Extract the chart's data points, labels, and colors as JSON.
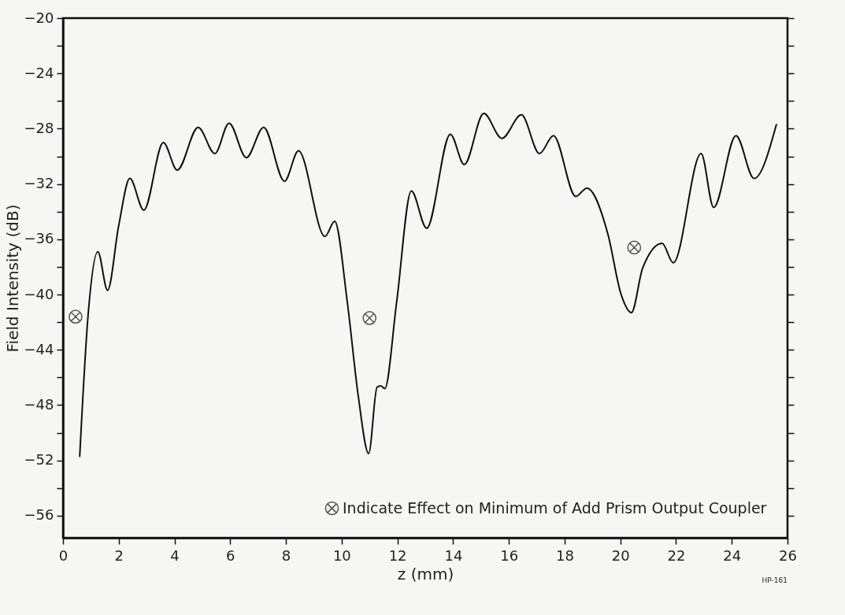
{
  "chart_data": {
    "type": "line",
    "xlabel": "z  (mm)",
    "ylabel": "Field Intensity  (dB)",
    "xlim": [
      0,
      26
    ],
    "ylim": [
      -57.6,
      -20
    ],
    "xticks": [
      0,
      2,
      4,
      6,
      8,
      10,
      12,
      14,
      16,
      18,
      20,
      22,
      24,
      26
    ],
    "yticks": [
      -20,
      {
        "value": -22,
        "label": null
      },
      -24,
      {
        "value": -26,
        "label": null
      },
      -28,
      {
        "value": -30,
        "label": null
      },
      -32,
      {
        "value": -34,
        "label": null
      },
      -36,
      {
        "value": -38,
        "label": null
      },
      -40,
      {
        "value": -42,
        "label": null
      },
      -44,
      {
        "value": -46,
        "label": null
      },
      -48,
      {
        "value": -50,
        "label": null
      },
      -52,
      {
        "value": -54,
        "label": null
      },
      -56
    ],
    "grid": false,
    "legend": "bottom right",
    "line_style": "solid",
    "series": [
      {
        "color": "#111111",
        "x": [
          0.6,
          0.9,
          1.25,
          1.6,
          2.0,
          2.4,
          2.9,
          3.6,
          4.1,
          4.85,
          5.45,
          5.96,
          6.58,
          7.2,
          7.95,
          8.45,
          9.4,
          9.75,
          10.2,
          10.6,
          10.97,
          11.27,
          11.4,
          11.55,
          11.97,
          12.5,
          13.05,
          13.9,
          14.4,
          15.1,
          15.75,
          16.45,
          17.1,
          17.6,
          18.4,
          18.8,
          19.55,
          20.03,
          20.4,
          20.8,
          21.5,
          21.9,
          22.9,
          23.35,
          24.15,
          24.8,
          25.6
        ],
        "values": [
          -51.7,
          -41.5,
          -36.9,
          -39.7,
          -35.0,
          -31.6,
          -33.9,
          -29.0,
          -31.0,
          -27.9,
          -29.8,
          -27.6,
          -30.1,
          -27.9,
          -31.8,
          -29.6,
          -35.8,
          -34.7,
          -40.5,
          -47.4,
          -51.5,
          -46.7,
          -46.6,
          -46.8,
          -40.6,
          -32.5,
          -35.2,
          -28.4,
          -30.6,
          -26.9,
          -28.7,
          -27.0,
          -29.8,
          -28.5,
          -32.9,
          -32.3,
          -35.6,
          -40.0,
          -41.3,
          -38.1,
          -36.3,
          -37.7,
          -29.8,
          -33.7,
          -28.5,
          -31.6,
          -27.7
        ]
      },
      {
        "type": "scatter",
        "marker": "cross",
        "name": "Indicate Effect on Minimum of Add Prism Output Coupler",
        "color": "#111111",
        "x": [
          0.45,
          11.0,
          20.5
        ],
        "values": [
          -41.6,
          -41.7,
          -36.6
        ]
      }
    ],
    "annotations": [
      "HP-161"
    ]
  }
}
